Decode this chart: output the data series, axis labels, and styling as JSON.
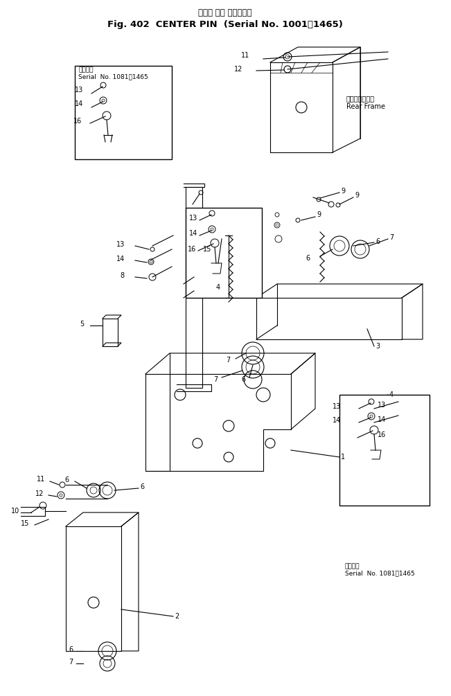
{
  "title_jp": "センタ ピン （適用号機",
  "title_en": "Fig. 402  CENTER PIN  (Serial No. 1001～1465)",
  "bg_color": "#ffffff",
  "line_color": "#000000",
  "fig_width": 6.51,
  "fig_height": 10.05,
  "dpi": 100
}
